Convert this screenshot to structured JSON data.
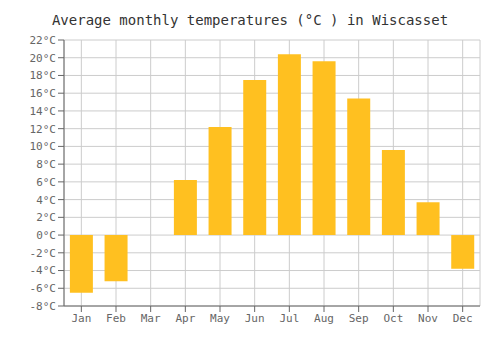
{
  "chart_data": {
    "type": "bar",
    "title": "Average monthly temperatures (°C ) in Wiscasset",
    "categories": [
      "Jan",
      "Feb",
      "Mar",
      "Apr",
      "May",
      "Jun",
      "Jul",
      "Aug",
      "Sep",
      "Oct",
      "Nov",
      "Dec"
    ],
    "values": [
      -6.5,
      -5.2,
      0.0,
      6.2,
      12.2,
      17.5,
      20.4,
      19.6,
      15.4,
      9.6,
      3.7,
      -3.8
    ],
    "color": "#FFC020",
    "ylim": [
      -8,
      22
    ],
    "yticks": [
      {
        "value": -8,
        "label": "-8°C"
      },
      {
        "value": -6,
        "label": "-6°C"
      },
      {
        "value": -4,
        "label": "-4°C"
      },
      {
        "value": -2,
        "label": "-2°C"
      },
      {
        "value": 0,
        "label": "0°C"
      },
      {
        "value": 2,
        "label": "2°C"
      },
      {
        "value": 4,
        "label": "4°C"
      },
      {
        "value": 6,
        "label": "6°C"
      },
      {
        "value": 8,
        "label": "8°C"
      },
      {
        "value": 10,
        "label": "10°C"
      },
      {
        "value": 12,
        "label": "12°C"
      },
      {
        "value": 14,
        "label": "14°C"
      },
      {
        "value": 16,
        "label": "16°C"
      },
      {
        "value": 18,
        "label": "18°C"
      },
      {
        "value": 20,
        "label": "20°C"
      },
      {
        "value": 22,
        "label": "22°C"
      }
    ],
    "grid": true
  }
}
